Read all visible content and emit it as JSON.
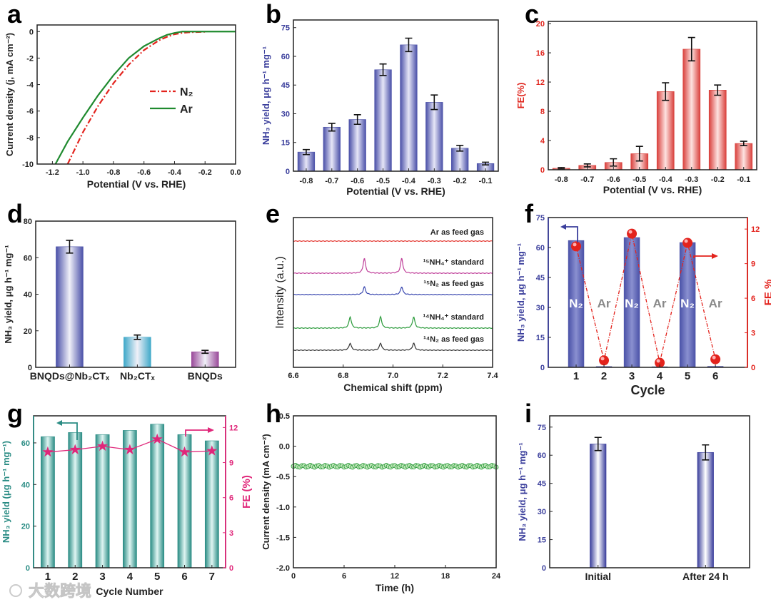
{
  "figure": {
    "watermark": "大数跨境"
  },
  "chart_data": [
    {
      "panel": "a",
      "type": "line",
      "xlabel": "Potential (V vs. RHE)",
      "ylabel": "Current density (j, mA cm⁻²)",
      "xlim": [
        -1.3,
        0
      ],
      "ylim": [
        -10,
        0.5
      ],
      "xticks": [
        "-1.2",
        "-1.0",
        "-0.8",
        "-0.6",
        "-0.4",
        "-0.2",
        "0.0"
      ],
      "yticks": [
        "0",
        "-2",
        "-4",
        "-6",
        "-8",
        "-10"
      ],
      "legend": "center-right",
      "series": [
        {
          "name": "N₂",
          "color": "#e3231d",
          "style": "dash-dot",
          "x": [
            -1.1,
            -1.0,
            -0.9,
            -0.8,
            -0.7,
            -0.6,
            -0.5,
            -0.45,
            -0.4,
            -0.35,
            -0.3,
            -0.2
          ],
          "y": [
            -10,
            -7.6,
            -5.6,
            -3.9,
            -2.5,
            -1.4,
            -0.65,
            -0.4,
            -0.2,
            -0.1,
            -0.05,
            -0.02
          ]
        },
        {
          "name": "Ar",
          "color": "#1f8a2f",
          "style": "solid",
          "x": [
            -1.18,
            -1.1,
            -1.0,
            -0.9,
            -0.8,
            -0.7,
            -0.6,
            -0.5,
            -0.45,
            -0.4,
            -0.35,
            -0.3,
            -0.2,
            0.0
          ],
          "y": [
            -10,
            -8.3,
            -6.5,
            -4.8,
            -3.3,
            -2.0,
            -1.1,
            -0.5,
            -0.25,
            -0.1,
            0,
            0,
            0,
            0
          ]
        }
      ]
    },
    {
      "panel": "b",
      "type": "bar",
      "xlabel": "Potential (V vs. RHE)",
      "ylabel": "NH₃ yield, μg h⁻¹ mg⁻¹",
      "ylim": [
        0,
        79
      ],
      "yticks": [
        "0",
        "15",
        "30",
        "45",
        "60",
        "75"
      ],
      "categories": [
        "-0.8",
        "-0.7",
        "-0.6",
        "-0.5",
        "-0.4",
        "-0.3",
        "-0.2",
        "-0.1"
      ],
      "values": [
        10,
        23,
        27,
        53,
        66,
        36,
        12,
        4
      ],
      "errors": [
        1.3,
        2,
        2.5,
        3,
        3.5,
        3.8,
        1.5,
        0.7
      ],
      "color": "#4a50a8"
    },
    {
      "panel": "c",
      "type": "bar",
      "xlabel": "Potential (V vs. RHE)",
      "ylabel": "FE(%)",
      "ylim": [
        0,
        20.3
      ],
      "yticks": [
        "0",
        "4",
        "8",
        "12",
        "16",
        "20"
      ],
      "categories": [
        "-0.8",
        "-0.7",
        "-0.6",
        "-0.5",
        "-0.4",
        "-0.3",
        "-0.2",
        "-0.1"
      ],
      "values": [
        0.2,
        0.6,
        1.0,
        2.2,
        10.7,
        16.5,
        10.9,
        3.6
      ],
      "errors": [
        0.1,
        0.2,
        0.5,
        1.0,
        1.2,
        1.6,
        0.7,
        0.3
      ],
      "color": "#d9403c"
    },
    {
      "panel": "d",
      "type": "bar",
      "xlabel": "",
      "ylabel": "NH₃ yield, μg h⁻¹ mg⁻¹",
      "ylim": [
        0,
        80
      ],
      "yticks": [
        "0",
        "20",
        "40",
        "60",
        "80"
      ],
      "categories": [
        "BNQDs@Nb₂CTₓ",
        "Nb₂CTₓ",
        "BNQDs"
      ],
      "values": [
        66,
        16.5,
        8.5
      ],
      "errors": [
        3.5,
        1.2,
        0.8
      ],
      "colors": [
        "#4a50a8",
        "#3fa9c9",
        "#9a4a9a"
      ]
    },
    {
      "panel": "e",
      "type": "line",
      "xlabel": "Chemical shift (ppm)",
      "ylabel": "Intensity (a.u.)",
      "xlim": [
        6.6,
        7.4
      ],
      "xticks": [
        "6.6",
        "6.8",
        "7.0",
        "7.2",
        "7.4"
      ],
      "series": [
        {
          "name": "Ar as feed gas",
          "color": "#e3352e",
          "peaks": [],
          "peak_height_au": 0
        },
        {
          "name": "¹⁵NH₄⁺ standard",
          "color": "#c0409a",
          "peaks": [
            6.885,
            7.035
          ],
          "peak_height_au": 1.0
        },
        {
          "name": "¹⁵N₂ as feed gas",
          "color": "#3a48b0",
          "peaks": [
            6.885,
            7.035
          ],
          "peak_height_au": 0.55
        },
        {
          "name": "¹⁴NH₄⁺ standard",
          "color": "#2a9a3a",
          "peaks": [
            6.828,
            6.95,
            7.083
          ],
          "peak_height_au": 0.8
        },
        {
          "name": "¹⁴N₂ as feed gas",
          "color": "#333333",
          "peaks": [
            6.828,
            6.95,
            7.083
          ],
          "peak_height_au": 0.5
        }
      ]
    },
    {
      "panel": "f",
      "type": "bar",
      "xlabel": "Cycle",
      "ylabel": "NH₃ yield, μg h⁻¹ mg⁻¹",
      "y2label": "FE %",
      "ylim": [
        0,
        75
      ],
      "yticks": [
        "0",
        "15",
        "30",
        "45",
        "60",
        "75"
      ],
      "y2lim": [
        0,
        13
      ],
      "y2ticks": [
        "0",
        "3",
        "6",
        "9",
        "12"
      ],
      "categories": [
        "1",
        "2",
        "3",
        "4",
        "5",
        "6"
      ],
      "bar_labels": [
        "N₂",
        "Ar",
        "N₂",
        "Ar",
        "N₂",
        "Ar"
      ],
      "series": [
        {
          "name": "NH₃ yield",
          "axis": "left",
          "color": "#4b52a8",
          "values": [
            63.5,
            0.4,
            65,
            0.3,
            62.5,
            0.5
          ]
        },
        {
          "name": "FE",
          "axis": "right",
          "color": "#e3231d",
          "values": [
            10.5,
            0.6,
            11.6,
            0.4,
            10.8,
            0.7
          ]
        }
      ]
    },
    {
      "panel": "g",
      "type": "bar",
      "xlabel": "Cycle Number",
      "ylabel": "NH₃ yield (μg h⁻¹ mg⁻¹)",
      "y2label": "FE (%)",
      "ylim": [
        0,
        73
      ],
      "yticks": [
        "0",
        "20",
        "40",
        "60"
      ],
      "y2lim": [
        0,
        13
      ],
      "y2ticks": [
        "0",
        "3",
        "6",
        "9",
        "12"
      ],
      "categories": [
        "1",
        "2",
        "3",
        "4",
        "5",
        "6",
        "7"
      ],
      "series": [
        {
          "name": "NH₃ yield",
          "axis": "left",
          "color": "#2a8c84",
          "values": [
            63,
            65,
            64,
            66,
            69,
            64,
            61
          ]
        },
        {
          "name": "FE",
          "axis": "right",
          "color": "#e0277a",
          "values": [
            9.9,
            10.1,
            10.4,
            10.1,
            11.0,
            9.9,
            10.0
          ]
        }
      ]
    },
    {
      "panel": "h",
      "type": "scatter",
      "xlabel": "Time (h)",
      "ylabel": "Current density (mA cm⁻²)",
      "xlim": [
        0,
        24
      ],
      "ylim": [
        -2.0,
        0.5
      ],
      "xticks": [
        "0",
        "6",
        "12",
        "18",
        "24"
      ],
      "yticks": [
        "0.5",
        "0.0",
        "-0.5",
        "-1.0",
        "-1.5",
        "-2.0"
      ],
      "series": [
        {
          "name": "current density",
          "color": "#2a9a3a",
          "x_start": 0,
          "x_end": 24,
          "step_h": 0.25,
          "y": -0.33
        }
      ]
    },
    {
      "panel": "i",
      "type": "bar",
      "xlabel": "",
      "ylabel": "NH₃ yield, μg h⁻¹ mg⁻¹",
      "ylim": [
        0,
        81
      ],
      "yticks": [
        "0",
        "15",
        "30",
        "45",
        "60",
        "75"
      ],
      "categories": [
        "Initial",
        "After 24 h"
      ],
      "values": [
        66,
        61.5
      ],
      "errors": [
        3.5,
        4
      ],
      "color": "#3b3f9c"
    }
  ]
}
